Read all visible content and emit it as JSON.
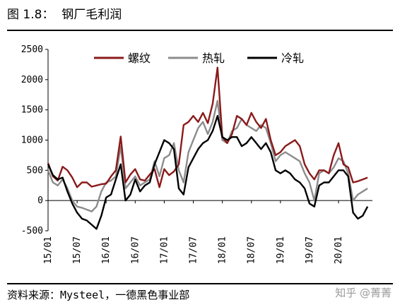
{
  "header": {
    "title": "图 1.8：  钢厂毛利润"
  },
  "footer": {
    "source": "资料来源：Mysteel，一德黑色事业部",
    "watermark": "知乎 @菁菁"
  },
  "chart_data": {
    "type": "line",
    "title": "钢厂毛利润",
    "xlabel": "",
    "ylabel": "",
    "ylim": [
      -500,
      2500
    ],
    "yticks": [
      -500,
      0,
      500,
      1000,
      1500,
      2000,
      2500
    ],
    "xlim": [
      "2015-01",
      "2020-08"
    ],
    "xticks": [
      "15/01",
      "15/07",
      "16/01",
      "16/07",
      "17/01",
      "17/07",
      "18/01",
      "18/07",
      "19/01",
      "19/07",
      "20/01"
    ],
    "legend_position": "top",
    "grid": false,
    "series": [
      {
        "name": "螺纹",
        "color": "#8b1a1a",
        "points": [
          [
            "2015-01",
            620
          ],
          [
            "2015-02",
            400
          ],
          [
            "2015-03",
            330
          ],
          [
            "2015-04",
            560
          ],
          [
            "2015-05",
            500
          ],
          [
            "2015-06",
            380
          ],
          [
            "2015-07",
            220
          ],
          [
            "2015-08",
            300
          ],
          [
            "2015-09",
            300
          ],
          [
            "2015-10",
            230
          ],
          [
            "2015-11",
            250
          ],
          [
            "2015-12",
            270
          ],
          [
            "2016-01",
            280
          ],
          [
            "2016-02",
            400
          ],
          [
            "2016-03",
            500
          ],
          [
            "2016-04",
            1060
          ],
          [
            "2016-05",
            300
          ],
          [
            "2016-06",
            430
          ],
          [
            "2016-07",
            520
          ],
          [
            "2016-08",
            350
          ],
          [
            "2016-09",
            330
          ],
          [
            "2016-10",
            430
          ],
          [
            "2016-11",
            520
          ],
          [
            "2016-12",
            220
          ],
          [
            "2017-01",
            520
          ],
          [
            "2017-02",
            420
          ],
          [
            "2017-03",
            480
          ],
          [
            "2017-04",
            600
          ],
          [
            "2017-05",
            1250
          ],
          [
            "2017-06",
            1300
          ],
          [
            "2017-07",
            1400
          ],
          [
            "2017-08",
            1300
          ],
          [
            "2017-09",
            1450
          ],
          [
            "2017-10",
            1280
          ],
          [
            "2017-11",
            1600
          ],
          [
            "2017-12",
            2200
          ],
          [
            "2018-01",
            1050
          ],
          [
            "2018-02",
            950
          ],
          [
            "2018-03",
            1100
          ],
          [
            "2018-04",
            1400
          ],
          [
            "2018-05",
            1350
          ],
          [
            "2018-06",
            1250
          ],
          [
            "2018-07",
            1450
          ],
          [
            "2018-08",
            1300
          ],
          [
            "2018-09",
            1200
          ],
          [
            "2018-10",
            1350
          ],
          [
            "2018-11",
            1000
          ],
          [
            "2018-12",
            750
          ],
          [
            "2019-01",
            800
          ],
          [
            "2019-02",
            900
          ],
          [
            "2019-03",
            950
          ],
          [
            "2019-04",
            1000
          ],
          [
            "2019-05",
            900
          ],
          [
            "2019-06",
            600
          ],
          [
            "2019-07",
            450
          ],
          [
            "2019-08",
            350
          ],
          [
            "2019-09",
            500
          ],
          [
            "2019-10",
            500
          ],
          [
            "2019-11",
            450
          ],
          [
            "2019-12",
            750
          ],
          [
            "2020-01",
            950
          ],
          [
            "2020-02",
            600
          ],
          [
            "2020-03",
            550
          ],
          [
            "2020-04",
            300
          ],
          [
            "2020-05",
            320
          ],
          [
            "2020-06",
            350
          ],
          [
            "2020-07",
            380
          ]
        ]
      },
      {
        "name": "热轧",
        "color": "#8c8c8c",
        "points": [
          [
            "2015-01",
            500
          ],
          [
            "2015-02",
            300
          ],
          [
            "2015-03",
            250
          ],
          [
            "2015-04",
            350
          ],
          [
            "2015-05",
            200
          ],
          [
            "2015-06",
            0
          ],
          [
            "2015-07",
            -100
          ],
          [
            "2015-08",
            -120
          ],
          [
            "2015-09",
            -150
          ],
          [
            "2015-10",
            -180
          ],
          [
            "2015-11",
            -100
          ],
          [
            "2015-12",
            150
          ],
          [
            "2016-01",
            300
          ],
          [
            "2016-02",
            330
          ],
          [
            "2016-03",
            400
          ],
          [
            "2016-04",
            900
          ],
          [
            "2016-05",
            200
          ],
          [
            "2016-06",
            300
          ],
          [
            "2016-07",
            400
          ],
          [
            "2016-08",
            250
          ],
          [
            "2016-09",
            300
          ],
          [
            "2016-10",
            350
          ],
          [
            "2016-11",
            650
          ],
          [
            "2016-12",
            400
          ],
          [
            "2017-01",
            700
          ],
          [
            "2017-02",
            750
          ],
          [
            "2017-03",
            950
          ],
          [
            "2017-04",
            500
          ],
          [
            "2017-05",
            300
          ],
          [
            "2017-06",
            800
          ],
          [
            "2017-07",
            1000
          ],
          [
            "2017-08",
            1200
          ],
          [
            "2017-09",
            1300
          ],
          [
            "2017-10",
            1100
          ],
          [
            "2017-11",
            1300
          ],
          [
            "2017-12",
            1650
          ],
          [
            "2018-01",
            1000
          ],
          [
            "2018-02",
            950
          ],
          [
            "2018-03",
            1150
          ],
          [
            "2018-04",
            1200
          ],
          [
            "2018-05",
            1350
          ],
          [
            "2018-06",
            1250
          ],
          [
            "2018-07",
            1200
          ],
          [
            "2018-08",
            1150
          ],
          [
            "2018-09",
            1250
          ],
          [
            "2018-10",
            1200
          ],
          [
            "2018-11",
            950
          ],
          [
            "2018-12",
            650
          ],
          [
            "2019-01",
            750
          ],
          [
            "2019-02",
            800
          ],
          [
            "2019-03",
            750
          ],
          [
            "2019-04",
            700
          ],
          [
            "2019-05",
            650
          ],
          [
            "2019-06",
            450
          ],
          [
            "2019-07",
            300
          ],
          [
            "2019-08",
            0
          ],
          [
            "2019-09",
            450
          ],
          [
            "2019-10",
            500
          ],
          [
            "2019-11",
            450
          ],
          [
            "2019-12",
            550
          ],
          [
            "2020-01",
            700
          ],
          [
            "2020-02",
            650
          ],
          [
            "2020-03",
            450
          ],
          [
            "2020-04",
            0
          ],
          [
            "2020-05",
            100
          ],
          [
            "2020-06",
            150
          ],
          [
            "2020-07",
            200
          ]
        ]
      },
      {
        "name": "冷轧",
        "color": "#000000",
        "points": [
          [
            "2015-01",
            600
          ],
          [
            "2015-02",
            420
          ],
          [
            "2015-03",
            350
          ],
          [
            "2015-04",
            380
          ],
          [
            "2015-05",
            150
          ],
          [
            "2015-06",
            -50
          ],
          [
            "2015-07",
            -200
          ],
          [
            "2015-08",
            -300
          ],
          [
            "2015-09",
            -330
          ],
          [
            "2015-10",
            -400
          ],
          [
            "2015-11",
            -470
          ],
          [
            "2015-12",
            -250
          ],
          [
            "2016-01",
            50
          ],
          [
            "2016-02",
            100
          ],
          [
            "2016-03",
            350
          ],
          [
            "2016-04",
            600
          ],
          [
            "2016-05",
            0
          ],
          [
            "2016-06",
            100
          ],
          [
            "2016-07",
            350
          ],
          [
            "2016-08",
            150
          ],
          [
            "2016-09",
            250
          ],
          [
            "2016-10",
            300
          ],
          [
            "2016-11",
            600
          ],
          [
            "2016-12",
            800
          ],
          [
            "2017-01",
            1000
          ],
          [
            "2017-02",
            950
          ],
          [
            "2017-03",
            850
          ],
          [
            "2017-04",
            200
          ],
          [
            "2017-05",
            100
          ],
          [
            "2017-06",
            550
          ],
          [
            "2017-07",
            700
          ],
          [
            "2017-08",
            850
          ],
          [
            "2017-09",
            950
          ],
          [
            "2017-10",
            1000
          ],
          [
            "2017-11",
            1150
          ],
          [
            "2017-12",
            1400
          ],
          [
            "2018-01",
            1050
          ],
          [
            "2018-02",
            1000
          ],
          [
            "2018-03",
            1050
          ],
          [
            "2018-04",
            1050
          ],
          [
            "2018-05",
            900
          ],
          [
            "2018-06",
            950
          ],
          [
            "2018-07",
            1050
          ],
          [
            "2018-08",
            950
          ],
          [
            "2018-09",
            850
          ],
          [
            "2018-10",
            950
          ],
          [
            "2018-11",
            800
          ],
          [
            "2018-12",
            500
          ],
          [
            "2019-01",
            450
          ],
          [
            "2019-02",
            500
          ],
          [
            "2019-03",
            450
          ],
          [
            "2019-04",
            350
          ],
          [
            "2019-05",
            300
          ],
          [
            "2019-06",
            200
          ],
          [
            "2019-07",
            -50
          ],
          [
            "2019-08",
            -100
          ],
          [
            "2019-09",
            250
          ],
          [
            "2019-10",
            300
          ],
          [
            "2019-11",
            300
          ],
          [
            "2019-12",
            400
          ],
          [
            "2020-01",
            500
          ],
          [
            "2020-02",
            500
          ],
          [
            "2020-03",
            400
          ],
          [
            "2020-04",
            -200
          ],
          [
            "2020-05",
            -300
          ],
          [
            "2020-06",
            -250
          ],
          [
            "2020-07",
            -100
          ]
        ]
      }
    ]
  }
}
